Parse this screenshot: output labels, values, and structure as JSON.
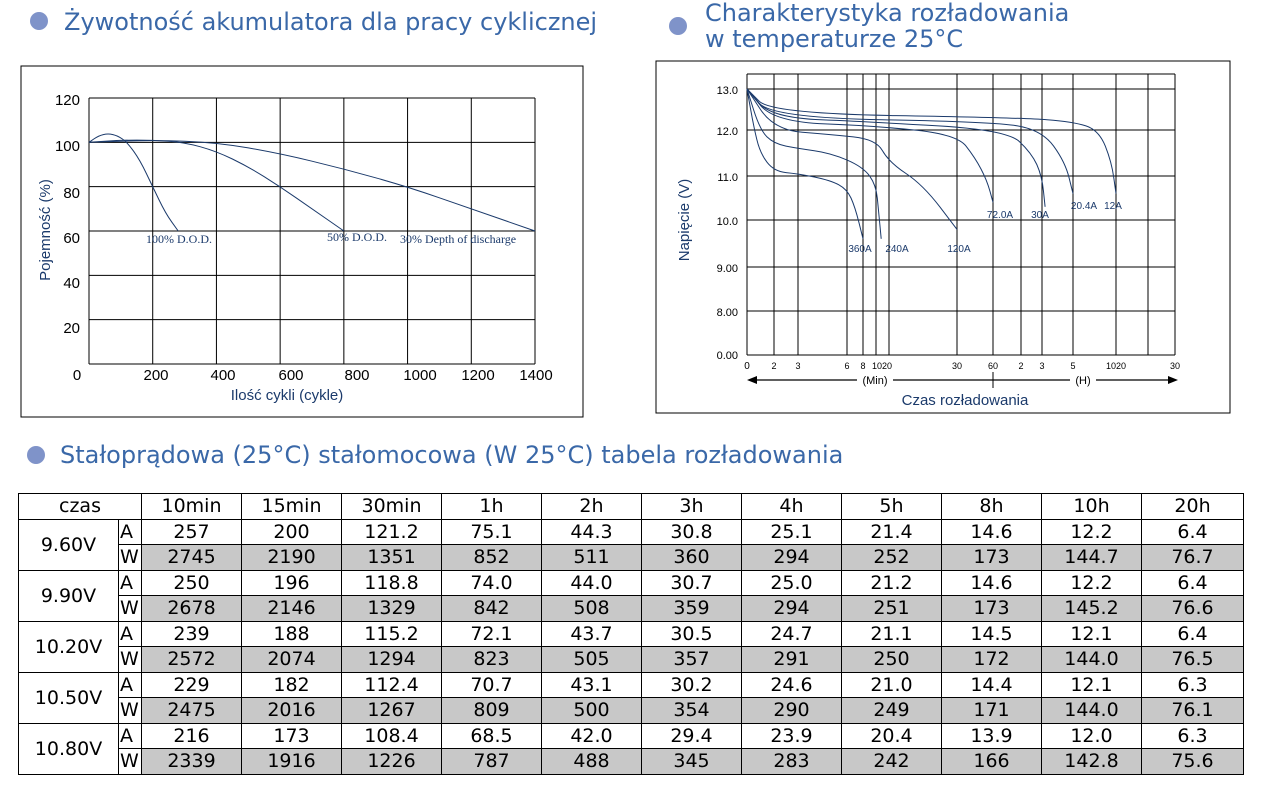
{
  "left_chart": {
    "title": "Żywotność akumulatora dla pracy cyklicznej",
    "ylabel": "Pojemność (%)",
    "xlabel": "Ilość cykli (cykle)",
    "x_ticks": [
      "0",
      "200",
      "400",
      "600",
      "800",
      "1000",
      "1200",
      "1400"
    ],
    "y_ticks": [
      "20",
      "40",
      "60",
      "80",
      "100",
      "120"
    ],
    "annotations": [
      "100% D.O.D.",
      "50% D.O.D.",
      "30% Depth of  discharge"
    ]
  },
  "right_chart": {
    "title_line1": "Charakterystyka rozładowania",
    "title_line2": "w temperaturze 25°C",
    "ylabel": "Napięcie (V)",
    "xlabel": "Czas rozładowania",
    "y_ticks": [
      "13.0",
      "12.0",
      "11.0",
      "10.0",
      "9.00",
      "8.00",
      "0.00"
    ],
    "x_ticks": [
      "0",
      "2",
      "3",
      "6",
      "8",
      "1020",
      "30",
      "60",
      "2",
      "3",
      "5",
      "1020",
      "30"
    ],
    "min_label": "(Min)",
    "h_label": "(H)",
    "curve_labels": [
      "360A",
      "240A",
      "120A",
      "72.0A",
      "30A",
      "20.4A",
      "12A"
    ]
  },
  "chart_data": [
    {
      "type": "line",
      "title": "Żywotność akumulatora dla pracy cyklicznej",
      "xlabel": "Ilość cykli (cykle)",
      "ylabel": "Pojemność (%)",
      "xlim": [
        0,
        1400
      ],
      "ylim": [
        0,
        120
      ],
      "grid": true,
      "series": [
        {
          "name": "100% D.O.D.",
          "x": [
            0,
            30,
            60,
            90,
            120,
            160,
            200,
            240,
            280
          ],
          "y": [
            100,
            103,
            104,
            103,
            100,
            92,
            80,
            68,
            60
          ]
        },
        {
          "name": "50% D.O.D.",
          "x": [
            0,
            100,
            200,
            300,
            400,
            500,
            600,
            700,
            800
          ],
          "y": [
            100,
            101,
            101,
            100,
            96,
            89,
            80,
            70,
            60
          ]
        },
        {
          "name": "30% Depth of  discharge",
          "x": [
            0,
            200,
            400,
            600,
            800,
            1000,
            1200,
            1400
          ],
          "y": [
            100,
            101,
            100,
            95,
            88,
            80,
            70,
            60
          ]
        }
      ]
    },
    {
      "type": "line",
      "title": "Charakterystyka rozładowania w temperaturze 25°C",
      "xlabel": "Czas rozładowania",
      "ylabel": "Napięcie (V)",
      "grid": true,
      "series": [
        {
          "name": "360A",
          "x_min": [
            0,
            0.5,
            1,
            2,
            3,
            5,
            6,
            7,
            8
          ],
          "y": [
            13.0,
            12.1,
            11.5,
            11.1,
            11.05,
            10.9,
            10.7,
            10.3,
            9.6
          ]
        },
        {
          "name": "240A",
          "x_min": [
            0,
            1,
            2,
            3,
            5,
            8,
            10,
            12,
            14
          ],
          "y": [
            13.0,
            12.0,
            11.7,
            11.6,
            11.5,
            11.2,
            10.8,
            10.2,
            9.6
          ]
        },
        {
          "name": "120A",
          "x_min": [
            0,
            2,
            5,
            10,
            20,
            25,
            30
          ],
          "y": [
            13.0,
            12.0,
            11.9,
            11.8,
            11.3,
            10.8,
            9.8
          ]
        },
        {
          "name": "72.0A",
          "x_min": [
            0,
            2,
            10,
            30,
            45,
            55,
            60
          ],
          "y": [
            13.0,
            12.2,
            12.1,
            11.9,
            11.4,
            10.9,
            10.4
          ]
        },
        {
          "name": "30A",
          "x_h": [
            0,
            0.1,
            0.5,
            1.5,
            2.5,
            3,
            3.2
          ],
          "y": [
            13.0,
            12.3,
            12.2,
            12.0,
            11.5,
            11.0,
            10.3
          ]
        },
        {
          "name": "20.4A",
          "x_h": [
            0,
            0.1,
            1,
            3,
            4.5,
            5
          ],
          "y": [
            13.0,
            12.3,
            12.2,
            12.0,
            11.3,
            10.6
          ]
        },
        {
          "name": "12A",
          "x_h": [
            0,
            0.1,
            2,
            5,
            8,
            9.5,
            10
          ],
          "y": [
            13.0,
            12.4,
            12.3,
            12.2,
            12.0,
            11.3,
            10.6
          ]
        }
      ]
    }
  ],
  "table": {
    "title": "Stałoprądowa (25°C) stałomocowa (W 25°C) tabela rozładowania",
    "corner": "czas",
    "headers": [
      "10min",
      "15min",
      "30min",
      "1h",
      "2h",
      "3h",
      "4h",
      "5h",
      "8h",
      "10h",
      "20h"
    ],
    "groups": [
      {
        "voltage": "9.60V",
        "rows": [
          {
            "unit": "A",
            "values": [
              "257",
              "200",
              "121.2",
              "75.1",
              "44.3",
              "30.8",
              "25.1",
              "21.4",
              "14.6",
              "12.2",
              "6.4"
            ]
          },
          {
            "unit": "W",
            "values": [
              "2745",
              "2190",
              "1351",
              "852",
              "511",
              "360",
              "294",
              "252",
              "173",
              "144.7",
              "76.7"
            ]
          }
        ]
      },
      {
        "voltage": "9.90V",
        "rows": [
          {
            "unit": "A",
            "values": [
              "250",
              "196",
              "118.8",
              "74.0",
              "44.0",
              "30.7",
              "25.0",
              "21.2",
              "14.6",
              "12.2",
              "6.4"
            ]
          },
          {
            "unit": "W",
            "values": [
              "2678",
              "2146",
              "1329",
              "842",
              "508",
              "359",
              "294",
              "251",
              "173",
              "145.2",
              "76.6"
            ]
          }
        ]
      },
      {
        "voltage": "10.20V",
        "rows": [
          {
            "unit": "A",
            "values": [
              "239",
              "188",
              "115.2",
              "72.1",
              "43.7",
              "30.5",
              "24.7",
              "21.1",
              "14.5",
              "12.1",
              "6.4"
            ]
          },
          {
            "unit": "W",
            "values": [
              "2572",
              "2074",
              "1294",
              "823",
              "505",
              "357",
              "291",
              "250",
              "172",
              "144.0",
              "76.5"
            ]
          }
        ]
      },
      {
        "voltage": "10.50V",
        "rows": [
          {
            "unit": "A",
            "values": [
              "229",
              "182",
              "112.4",
              "70.7",
              "43.1",
              "30.2",
              "24.6",
              "21.0",
              "14.4",
              "12.1",
              "6.3"
            ]
          },
          {
            "unit": "W",
            "values": [
              "2475",
              "2016",
              "1267",
              "809",
              "500",
              "354",
              "290",
              "249",
              "171",
              "144.0",
              "76.1"
            ]
          }
        ]
      },
      {
        "voltage": "10.80V",
        "rows": [
          {
            "unit": "A",
            "values": [
              "216",
              "173",
              "108.4",
              "68.5",
              "42.0",
              "29.4",
              "23.9",
              "20.4",
              "13.9",
              "12.0",
              "6.3"
            ]
          },
          {
            "unit": "W",
            "values": [
              "2339",
              "1916",
              "1226",
              "787",
              "488",
              "345",
              "283",
              "242",
              "166",
              "142.8",
              "75.6"
            ]
          }
        ]
      }
    ]
  },
  "colors": {
    "title": "#3a68a8",
    "bullet": "#7f93c9",
    "curve": "#1b3a6b",
    "row_shade": "#c8c8c8"
  }
}
